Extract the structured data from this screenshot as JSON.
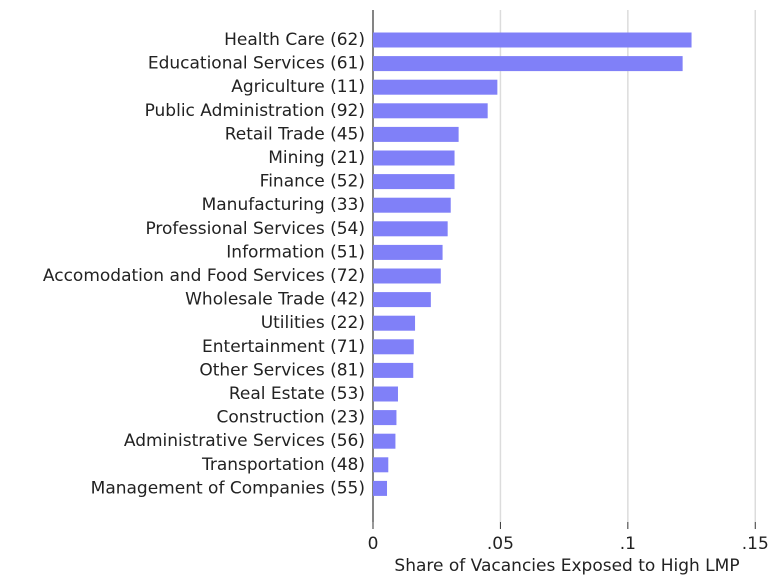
{
  "chart_data": {
    "type": "hbar",
    "x_label": "Share of Vacancies Exposed to High LMP",
    "categories": [
      "Health Care (62)",
      "Educational Services (61)",
      "Agriculture (11)",
      "Public Administration (92)",
      "Retail Trade (45)",
      "Mining (21)",
      "Finance (52)",
      "Manufacturing (33)",
      "Professional Services (54)",
      "Information (51)",
      "Accomodation and Food Services (72)",
      "Wholesale Trade (42)",
      "Utilities (22)",
      "Entertainment (71)",
      "Other Services (81)",
      "Real Estate (53)",
      "Construction (23)",
      "Administrative Services (56)",
      "Transportation (48)",
      "Management of Companies (55)"
    ],
    "values": [
      0.125,
      0.1215,
      0.0488,
      0.045,
      0.0336,
      0.032,
      0.032,
      0.0305,
      0.0293,
      0.0273,
      0.0266,
      0.0227,
      0.0165,
      0.016,
      0.0158,
      0.0098,
      0.0092,
      0.0088,
      0.006,
      0.0055
    ],
    "color": "#8080f8",
    "xlim": [
      0,
      0.155
    ],
    "xticks": [
      0,
      {
        "value": 0.05,
        "label": ".05"
      },
      {
        "value": 0.1,
        "label": ".1"
      },
      {
        "value": 0.15,
        "label": ".15"
      }
    ],
    "grid": true
  }
}
